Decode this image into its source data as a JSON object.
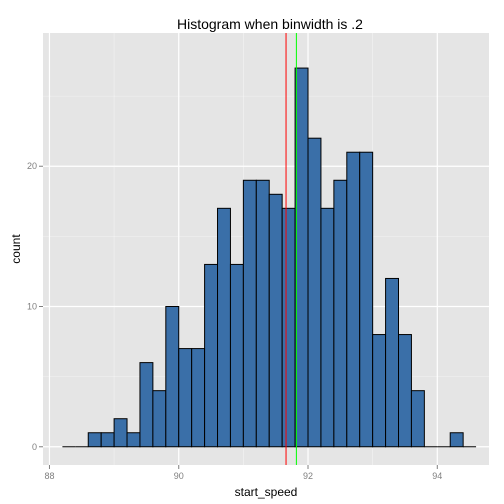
{
  "chart_data": {
    "type": "bar",
    "title": "Histogram when binwidth is .2",
    "xlabel": "start_speed",
    "ylabel": "count",
    "xlim": [
      87.9,
      94.8
    ],
    "ylim": [
      -1.3,
      29.5
    ],
    "x_ticks": [
      88,
      90,
      92,
      94
    ],
    "y_ticks": [
      0,
      10,
      20
    ],
    "binwidth": 0.2,
    "grid": true,
    "bin_starts": [
      88.2,
      88.4,
      88.6,
      88.8,
      89.0,
      89.2,
      89.4,
      89.6,
      89.8,
      90.0,
      90.2,
      90.4,
      90.6,
      90.8,
      91.0,
      91.2,
      91.4,
      91.6,
      91.8,
      92.0,
      92.2,
      92.4,
      92.6,
      92.8,
      93.0,
      93.2,
      93.4,
      93.6,
      93.8,
      94.0,
      94.2,
      94.4
    ],
    "counts": [
      0,
      0,
      1,
      1,
      2,
      1,
      6,
      4,
      10,
      7,
      7,
      13,
      17,
      13,
      19,
      19,
      18,
      17,
      27,
      22,
      17,
      19,
      21,
      21,
      8,
      12,
      8,
      4,
      0,
      0,
      1,
      0
    ],
    "bar_fill": "#3A6FA8",
    "bar_stroke": "#000000",
    "panel_background": "#E5E5E5",
    "grid_color": "#FFFFFF",
    "reference_lines": [
      {
        "x": 91.66,
        "color": "#FF0000"
      },
      {
        "x": 91.82,
        "color": "#00FF00"
      }
    ]
  }
}
